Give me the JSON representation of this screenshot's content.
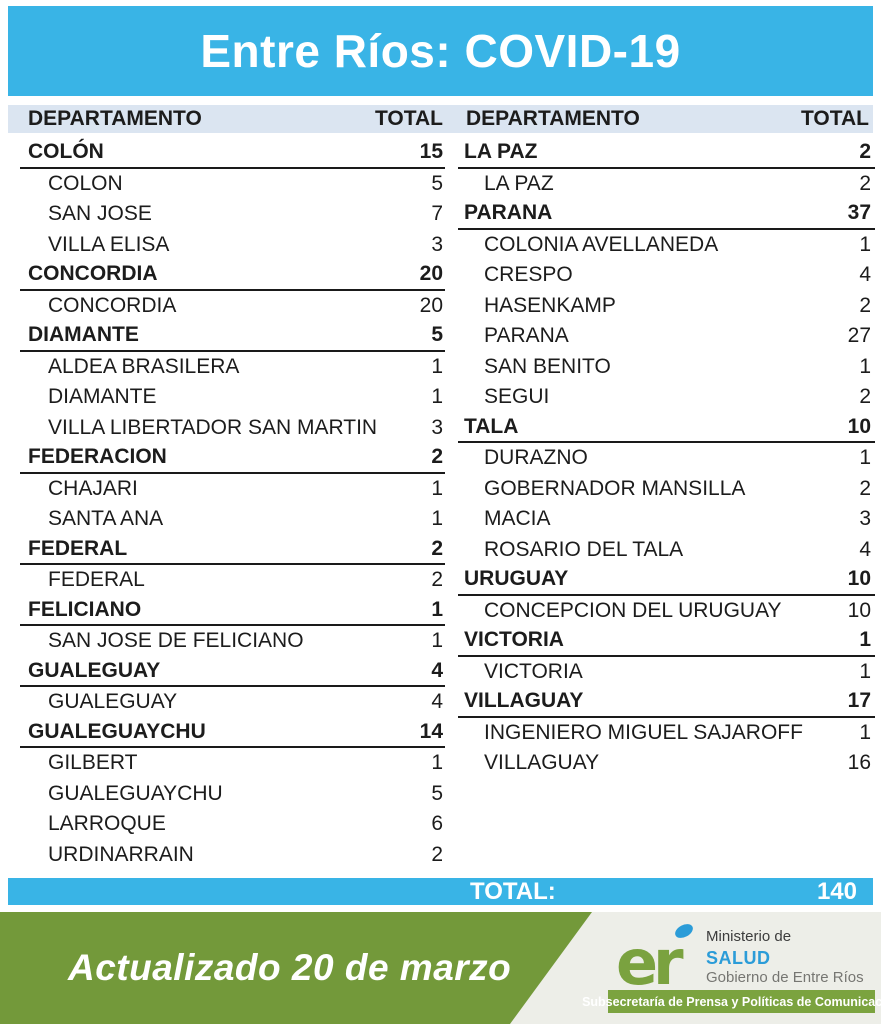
{
  "title": "Entre Ríos: COVID-19",
  "table": {
    "department_header": "DEPARTAMENTO",
    "total_header": "TOTAL",
    "left_rows": [
      {
        "label": "COLÓN",
        "value": "15",
        "group": true
      },
      {
        "label": "COLON",
        "value": "5",
        "group": false
      },
      {
        "label": "SAN JOSE",
        "value": "7",
        "group": false
      },
      {
        "label": "VILLA ELISA",
        "value": "3",
        "group": false
      },
      {
        "label": "CONCORDIA",
        "value": "20",
        "group": true
      },
      {
        "label": "CONCORDIA",
        "value": "20",
        "group": false
      },
      {
        "label": "DIAMANTE",
        "value": "5",
        "group": true
      },
      {
        "label": "ALDEA BRASILERA",
        "value": "1",
        "group": false
      },
      {
        "label": "DIAMANTE",
        "value": "1",
        "group": false
      },
      {
        "label": "VILLA LIBERTADOR SAN MARTIN",
        "value": "3",
        "group": false
      },
      {
        "label": "FEDERACION",
        "value": "2",
        "group": true
      },
      {
        "label": "CHAJARI",
        "value": "1",
        "group": false
      },
      {
        "label": "SANTA ANA",
        "value": "1",
        "group": false
      },
      {
        "label": "FEDERAL",
        "value": "2",
        "group": true
      },
      {
        "label": "FEDERAL",
        "value": "2",
        "group": false
      },
      {
        "label": "FELICIANO",
        "value": "1",
        "group": true
      },
      {
        "label": "SAN JOSE DE FELICIANO",
        "value": "1",
        "group": false
      },
      {
        "label": "GUALEGUAY",
        "value": "4",
        "group": true
      },
      {
        "label": "GUALEGUAY",
        "value": "4",
        "group": false
      },
      {
        "label": "GUALEGUAYCHU",
        "value": "14",
        "group": true
      },
      {
        "label": "GILBERT",
        "value": "1",
        "group": false
      },
      {
        "label": "GUALEGUAYCHU",
        "value": "5",
        "group": false
      },
      {
        "label": "LARROQUE",
        "value": "6",
        "group": false
      },
      {
        "label": "URDINARRAIN",
        "value": "2",
        "group": false
      }
    ],
    "right_rows": [
      {
        "label": "LA PAZ",
        "value": "2",
        "group": true
      },
      {
        "label": "LA PAZ",
        "value": "2",
        "group": false
      },
      {
        "label": "PARANA",
        "value": "37",
        "group": true
      },
      {
        "label": "COLONIA AVELLANEDA",
        "value": "1",
        "group": false
      },
      {
        "label": "CRESPO",
        "value": "4",
        "group": false
      },
      {
        "label": "HASENKAMP",
        "value": "2",
        "group": false
      },
      {
        "label": "PARANA",
        "value": "27",
        "group": false
      },
      {
        "label": "SAN BENITO",
        "value": "1",
        "group": false
      },
      {
        "label": "SEGUI",
        "value": "2",
        "group": false
      },
      {
        "label": "TALA",
        "value": "10",
        "group": true
      },
      {
        "label": "DURAZNO",
        "value": "1",
        "group": false
      },
      {
        "label": "GOBERNADOR MANSILLA",
        "value": "2",
        "group": false
      },
      {
        "label": "MACIA",
        "value": "3",
        "group": false
      },
      {
        "label": "ROSARIO DEL TALA",
        "value": "4",
        "group": false
      },
      {
        "label": "URUGUAY",
        "value": "10",
        "group": true
      },
      {
        "label": "CONCEPCION DEL URUGUAY",
        "value": "10",
        "group": false
      },
      {
        "label": "VICTORIA",
        "value": "1",
        "group": true
      },
      {
        "label": "VICTORIA",
        "value": "1",
        "group": false
      },
      {
        "label": "VILLAGUAY",
        "value": "17",
        "group": true
      },
      {
        "label": "INGENIERO MIGUEL SAJAROFF",
        "value": "1",
        "group": false
      },
      {
        "label": "VILLAGUAY",
        "value": "16",
        "group": false
      }
    ]
  },
  "total_bar": {
    "label": "TOTAL:",
    "value": "140"
  },
  "footer": {
    "updated": "Actualizado 20 de marzo",
    "logo": "er",
    "org_line1": "Ministerio de",
    "org_line2": "SALUD",
    "org_line3": "Gobierno de Entre Ríos",
    "badge": "Subsecretaría de Prensa y Políticas de Comunicación"
  },
  "colors": {
    "banner_blue": "#39b4e6",
    "header_band": "#dbe5f1",
    "green_band": "#73993a",
    "badge_green": "#7ba33f",
    "salud_blue": "#2b9cd8",
    "footer_bg": "#edeee8"
  }
}
